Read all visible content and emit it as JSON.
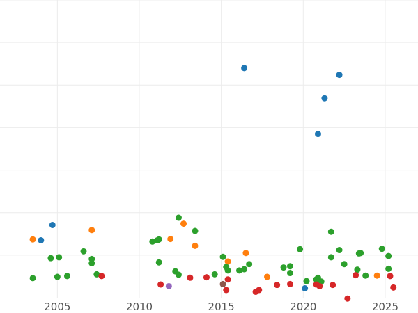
{
  "chart_data": {
    "type": "scatter",
    "title": "",
    "xlabel": "",
    "ylabel": "",
    "xlim": [
      2001.5,
      2027
    ],
    "ylim": [
      0,
      7
    ],
    "grid": true,
    "x_ticks": [
      2005,
      2010,
      2015,
      2020,
      2025
    ],
    "x_tick_labels": [
      "2005",
      "2010",
      "2015",
      "2020",
      "2025"
    ],
    "y_grid_values": [
      1,
      2,
      3,
      4,
      5,
      6,
      7
    ],
    "series": [
      {
        "color": "#1f77b4",
        "points": [
          [
            2004.0,
            1.35
          ],
          [
            2004.7,
            1.71
          ],
          [
            2016.4,
            5.4
          ],
          [
            2020.9,
            3.85
          ],
          [
            2021.3,
            4.69
          ],
          [
            2022.2,
            5.24
          ],
          [
            2020.1,
            0.22
          ]
        ]
      },
      {
        "color": "#ff7f0e",
        "points": [
          [
            2003.5,
            1.37
          ],
          [
            2007.1,
            1.59
          ],
          [
            2011.9,
            1.38
          ],
          [
            2012.7,
            1.74
          ],
          [
            2013.4,
            1.22
          ],
          [
            2015.4,
            0.85
          ],
          [
            2016.5,
            1.05
          ],
          [
            2017.8,
            0.49
          ],
          [
            2024.5,
            0.52
          ]
        ]
      },
      {
        "color": "#2ca02c",
        "points": [
          [
            2003.5,
            0.46
          ],
          [
            2004.6,
            0.93
          ],
          [
            2005.1,
            0.95
          ],
          [
            2005.0,
            0.49
          ],
          [
            2005.6,
            0.51
          ],
          [
            2006.6,
            1.09
          ],
          [
            2007.1,
            0.91
          ],
          [
            2007.1,
            0.81
          ],
          [
            2007.4,
            0.55
          ],
          [
            2010.8,
            1.32
          ],
          [
            2011.1,
            1.35
          ],
          [
            2011.2,
            1.37
          ],
          [
            2011.2,
            0.83
          ],
          [
            2012.2,
            0.62
          ],
          [
            2012.4,
            0.54
          ],
          [
            2012.4,
            1.88
          ],
          [
            2013.4,
            1.57
          ],
          [
            2014.6,
            0.55
          ],
          [
            2015.1,
            0.96
          ],
          [
            2015.3,
            0.72
          ],
          [
            2015.4,
            0.64
          ],
          [
            2016.1,
            0.64
          ],
          [
            2016.4,
            0.67
          ],
          [
            2016.7,
            0.79
          ],
          [
            2018.8,
            0.71
          ],
          [
            2019.2,
            0.74
          ],
          [
            2019.2,
            0.58
          ],
          [
            2019.8,
            1.14
          ],
          [
            2020.2,
            0.39
          ],
          [
            2020.8,
            0.43
          ],
          [
            2020.9,
            0.47
          ],
          [
            2021.1,
            0.38
          ],
          [
            2021.7,
            1.55
          ],
          [
            2021.7,
            0.95
          ],
          [
            2022.2,
            1.12
          ],
          [
            2022.5,
            0.79
          ],
          [
            2023.3,
            0.66
          ],
          [
            2023.4,
            1.04
          ],
          [
            2023.5,
            1.05
          ],
          [
            2023.8,
            0.52
          ],
          [
            2024.8,
            1.15
          ],
          [
            2025.2,
            0.98
          ],
          [
            2025.2,
            0.68
          ]
        ]
      },
      {
        "color": "#d62728",
        "points": [
          [
            2007.7,
            0.51
          ],
          [
            2011.3,
            0.31
          ],
          [
            2013.1,
            0.47
          ],
          [
            2014.1,
            0.48
          ],
          [
            2015.3,
            0.18
          ],
          [
            2015.4,
            0.43
          ],
          [
            2017.1,
            0.14
          ],
          [
            2017.3,
            0.18
          ],
          [
            2018.4,
            0.3
          ],
          [
            2019.2,
            0.32
          ],
          [
            2020.8,
            0.31
          ],
          [
            2021.0,
            0.27
          ],
          [
            2021.8,
            0.3
          ],
          [
            2022.7,
            -0.02
          ],
          [
            2023.2,
            0.53
          ],
          [
            2025.3,
            0.51
          ],
          [
            2025.5,
            0.24
          ]
        ]
      },
      {
        "color": "#9467bd",
        "points": [
          [
            2011.8,
            0.27
          ]
        ]
      },
      {
        "color": "#8c564b",
        "points": [
          [
            2015.1,
            0.32
          ]
        ]
      }
    ]
  }
}
